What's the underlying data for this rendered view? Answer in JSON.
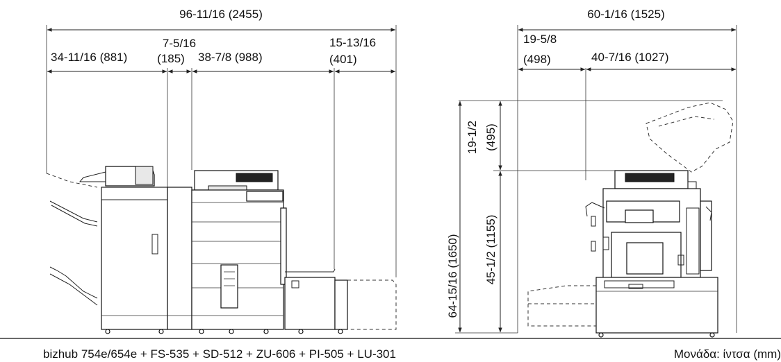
{
  "front_view": {
    "total_width": "96-11/16 (2455)",
    "finisher_width": "34-11/16 (881)",
    "connector_width_a": "7-5/16",
    "connector_width_b": "(185)",
    "main_body_width": "38-7/8 (988)",
    "lct_width_a": "15-13/16",
    "lct_width_b": "(401)"
  },
  "side_view": {
    "total_depth": "60-1/16 (1525)",
    "front_depth_a": "19-5/8",
    "front_depth_b": "(498)",
    "rear_depth": "40-7/16 (1027)",
    "total_height": "64-15/16 (1650)",
    "body_height": "45-1/2 (1155)",
    "feeder_height_a": "19-1/2",
    "feeder_height_b": "(495)"
  },
  "caption": {
    "model": "bizhub 754e/654e + FS-535 + SD-512 + ZU-606 + PI-505 + LU-301",
    "unit": "Μονάδα: ίντσα (mm)"
  }
}
